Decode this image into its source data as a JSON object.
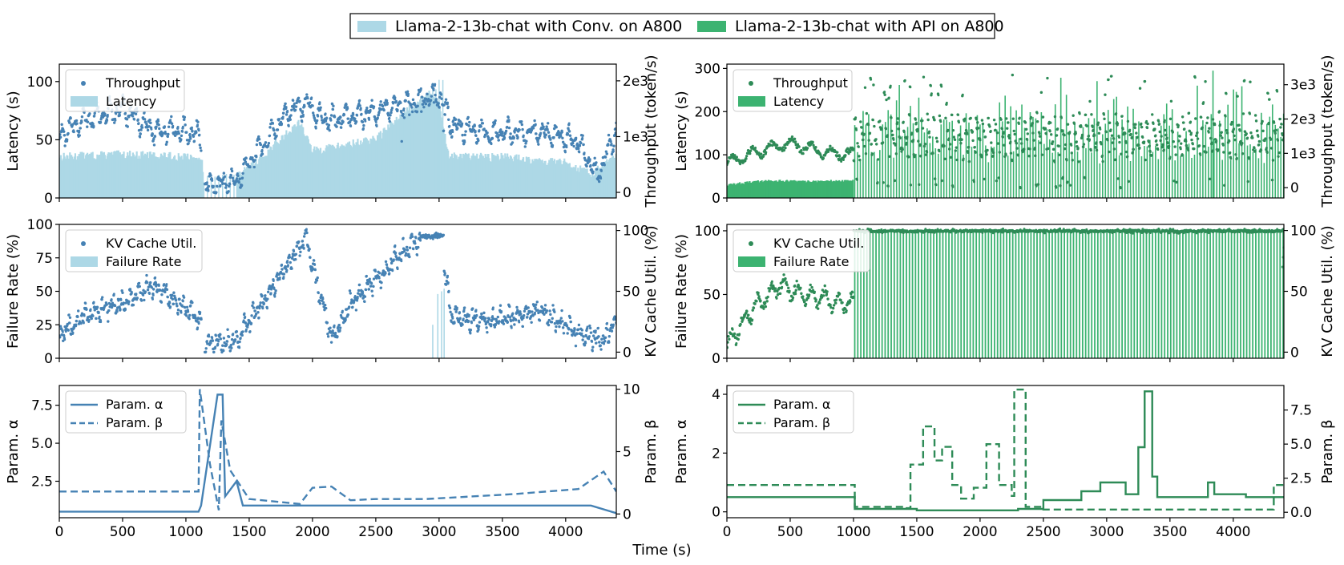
{
  "figure": {
    "legend": [
      {
        "label": "Llama-2-13b-chat with Conv. on A800",
        "color": "#add8e6"
      },
      {
        "label": "Llama-2-13b-chat with API on A800",
        "color": "#3cb371"
      }
    ],
    "xlabel": "Time (s)"
  },
  "colors": {
    "conv_dark": "#4682b4",
    "conv_light": "#add8e6",
    "api_dark": "#2e8b57",
    "api_light": "#3cb371"
  },
  "chart_data": [
    {
      "id": "conv-latency",
      "type": "bar+scatter",
      "column": "left",
      "row": 0,
      "xlim": [
        0,
        4400
      ],
      "xticks": [
        0,
        500,
        1000,
        1500,
        2000,
        2500,
        3000,
        3500,
        4000
      ],
      "left_axis": {
        "label": "Latency (s)",
        "ylim": [
          0,
          115
        ],
        "ticks": [
          0,
          50,
          100
        ],
        "tick_labels": [
          "0",
          "50",
          "100"
        ]
      },
      "right_axis": {
        "label": "Throughput (token/s)",
        "ylim": [
          -100,
          2300
        ],
        "ticks": [
          0,
          1000,
          2000
        ],
        "tick_labels": [
          "0",
          "1e3",
          "2e3"
        ]
      },
      "legend": [
        {
          "label": "Throughput",
          "kind": "dot"
        },
        {
          "label": "Latency",
          "kind": "bar"
        }
      ],
      "bars_series": {
        "name": "Latency",
        "x": [
          0,
          500,
          1000,
          1130,
          1150,
          1500,
          1900,
          2000,
          2500,
          2800,
          2950,
          3000,
          3080,
          3500,
          4000,
          4200,
          4400
        ],
        "y": [
          35,
          37,
          35,
          30,
          2,
          25,
          65,
          40,
          50,
          80,
          90,
          80,
          35,
          35,
          30,
          20,
          35
        ]
      },
      "dots_series": {
        "name": "Throughput",
        "x": [
          0,
          200,
          500,
          750,
          1000,
          1120,
          1150,
          1400,
          1800,
          1950,
          2100,
          2300,
          2600,
          2900,
          3000,
          3100,
          3400,
          3800,
          4100,
          4250,
          4400
        ],
        "y": [
          1000,
          1300,
          1500,
          1100,
          1100,
          1000,
          100,
          200,
          1450,
          1600,
          1300,
          1350,
          1500,
          1700,
          1800,
          1200,
          1050,
          1100,
          900,
          300,
          1100
        ]
      }
    },
    {
      "id": "api-latency",
      "type": "bar+scatter",
      "column": "right",
      "row": 0,
      "xlim": [
        0,
        4400
      ],
      "xticks": [
        0,
        500,
        1000,
        1500,
        2000,
        2500,
        3000,
        3500,
        4000
      ],
      "left_axis": {
        "label": "Latency (s)",
        "ylim": [
          0,
          310
        ],
        "ticks": [
          0,
          100,
          200,
          300
        ],
        "tick_labels": [
          "0",
          "100",
          "200",
          "300"
        ]
      },
      "right_axis": {
        "label": "Throughput (token/s)",
        "ylim": [
          -300,
          3600
        ],
        "ticks": [
          0,
          1000,
          2000,
          3000
        ],
        "tick_labels": [
          "0",
          "1e3",
          "2e3",
          "3e3"
        ]
      },
      "legend": [
        {
          "label": "Throughput",
          "kind": "dot"
        },
        {
          "label": "Latency",
          "kind": "bar"
        }
      ],
      "bars_series": {
        "name": "Latency",
        "x": [
          0,
          1000,
          1010,
          4400
        ],
        "y": [
          35,
          40,
          220,
          60
        ]
      },
      "dots_series": {
        "name": "Throughput",
        "x": [
          0,
          200,
          500,
          800,
          1000,
          1020,
          4400
        ],
        "y": [
          700,
          1000,
          1300,
          1000,
          1000,
          2000,
          1500
        ]
      }
    },
    {
      "id": "conv-failure",
      "type": "bar+scatter",
      "column": "left",
      "row": 1,
      "xlim": [
        0,
        4400
      ],
      "xticks": [
        0,
        500,
        1000,
        1500,
        2000,
        2500,
        3000,
        3500,
        4000
      ],
      "left_axis": {
        "label": "Failure Rate (%)",
        "ylim": [
          0,
          100
        ],
        "ticks": [
          0,
          25,
          50,
          75,
          100
        ],
        "tick_labels": [
          "0",
          "25",
          "50",
          "75",
          "100"
        ]
      },
      "right_axis": {
        "label": "KV Cache Util. (%)",
        "ylim": [
          -5,
          105
        ],
        "ticks": [
          0,
          50,
          100
        ],
        "tick_labels": [
          "0",
          "50",
          "100"
        ]
      },
      "legend": [
        {
          "label": "KV Cache Util.",
          "kind": "dot"
        },
        {
          "label": "Failure Rate",
          "kind": "bar"
        }
      ],
      "bars_series": {
        "name": "Failure Rate",
        "x": [
          2950,
          2990,
          3020,
          3040
        ],
        "y": [
          25,
          48,
          50,
          52
        ]
      },
      "dots_series": {
        "name": "KV Cache Util.",
        "x": [
          0,
          200,
          500,
          750,
          1000,
          1120,
          1150,
          1400,
          1600,
          1950,
          2000,
          2150,
          2300,
          2600,
          2800,
          3000,
          3050,
          3100,
          3400,
          3800,
          4100,
          4300,
          4400
        ],
        "y": [
          15,
          30,
          40,
          55,
          35,
          25,
          5,
          10,
          40,
          95,
          70,
          10,
          40,
          70,
          90,
          95,
          60,
          30,
          25,
          35,
          15,
          10,
          25
        ]
      }
    },
    {
      "id": "api-failure",
      "type": "bar+scatter",
      "column": "right",
      "row": 1,
      "xlim": [
        0,
        4400
      ],
      "xticks": [
        0,
        500,
        1000,
        1500,
        2000,
        2500,
        3000,
        3500,
        4000
      ],
      "left_axis": {
        "label": "Failure Rate (%)",
        "ylim": [
          0,
          105
        ],
        "ticks": [
          0,
          50,
          100
        ],
        "tick_labels": [
          "0",
          "50",
          "100"
        ]
      },
      "right_axis": {
        "label": "KV Cache Util. (%)",
        "ylim": [
          -5,
          105
        ],
        "ticks": [
          0,
          50,
          100
        ],
        "tick_labels": [
          "0",
          "50",
          "100"
        ]
      },
      "legend": [
        {
          "label": "KV Cache Util.",
          "kind": "dot"
        },
        {
          "label": "Failure Rate",
          "kind": "bar"
        }
      ],
      "bars_series": {
        "name": "Failure Rate",
        "x": [
          1010,
          4400
        ],
        "y": [
          100,
          100
        ]
      },
      "dots_series": {
        "name": "KV Cache Util.",
        "x": [
          0,
          200,
          400,
          700,
          1000,
          1020,
          4400
        ],
        "y": [
          5,
          35,
          55,
          45,
          40,
          100,
          100
        ]
      }
    },
    {
      "id": "conv-params",
      "type": "line",
      "column": "left",
      "row": 2,
      "xlim": [
        0,
        4400
      ],
      "xticks": [
        0,
        500,
        1000,
        1500,
        2000,
        2500,
        3000,
        3500,
        4000
      ],
      "xtick_labels": [
        "0",
        "500",
        "1000",
        "1500",
        "2000",
        "2500",
        "3000",
        "3500",
        "4000"
      ],
      "left_axis": {
        "label": "Param. α",
        "ylim": [
          0.1,
          8.8
        ],
        "ticks": [
          2.5,
          5.0,
          7.5
        ],
        "tick_labels": [
          "2.5",
          "5.0",
          "7.5"
        ]
      },
      "right_axis": {
        "label": "Param. β",
        "ylim": [
          -0.3,
          10.3
        ],
        "ticks": [
          0,
          5,
          10
        ],
        "tick_labels": [
          "0",
          "5",
          "10"
        ]
      },
      "legend": [
        {
          "label": "Param. α",
          "kind": "solid"
        },
        {
          "label": "Param. β",
          "kind": "dashed"
        }
      ],
      "series": [
        {
          "name": "Param. α",
          "style": "solid",
          "x": [
            0,
            1100,
            1120,
            1250,
            1290,
            1310,
            1400,
            1450,
            4200,
            4400
          ],
          "y": [
            0.5,
            0.5,
            0.9,
            8.2,
            8.2,
            1.5,
            2.5,
            0.9,
            0.9,
            0.4
          ]
        },
        {
          "name": "Param. β",
          "style": "dashed",
          "x": [
            0,
            1100,
            1110,
            1190,
            1260,
            1280,
            1350,
            1500,
            1900,
            2000,
            2150,
            2300,
            2500,
            2900,
            3600,
            4100,
            4300,
            4400
          ],
          "y": [
            1.8,
            1.8,
            10,
            4,
            0.3,
            7.5,
            3.5,
            1.2,
            0.8,
            2.1,
            2.2,
            1.1,
            1.2,
            1.2,
            1.6,
            2.0,
            3.4,
            1.8
          ]
        }
      ]
    },
    {
      "id": "api-params",
      "type": "line",
      "column": "right",
      "row": 2,
      "xlim": [
        0,
        4400
      ],
      "xticks": [
        0,
        500,
        1000,
        1500,
        2000,
        2500,
        3000,
        3500,
        4000
      ],
      "xtick_labels": [
        "0",
        "500",
        "1000",
        "1500",
        "2000",
        "2500",
        "3000",
        "3500",
        "4000"
      ],
      "left_axis": {
        "label": "Param. α",
        "ylim": [
          -0.2,
          4.3
        ],
        "ticks": [
          0,
          2,
          4
        ],
        "tick_labels": [
          "0",
          "2",
          "4"
        ]
      },
      "right_axis": {
        "label": "Param. β",
        "ylim": [
          -0.4,
          9.3
        ],
        "ticks": [
          0.0,
          2.5,
          5.0,
          7.5
        ],
        "tick_labels": [
          "0.0",
          "2.5",
          "5.0",
          "7.5"
        ]
      },
      "legend": [
        {
          "label": "Param. α",
          "kind": "solid"
        },
        {
          "label": "Param. β",
          "kind": "dashed"
        }
      ],
      "series": [
        {
          "name": "Param. α",
          "style": "solid",
          "x": [
            0,
            1000,
            1010,
            1500,
            2300,
            2500,
            2800,
            2950,
            3150,
            3250,
            3300,
            3330,
            3360,
            3400,
            3800,
            3850,
            4100,
            4400
          ],
          "y": [
            0.5,
            0.5,
            0.1,
            0.05,
            0.1,
            0.4,
            0.7,
            1.0,
            0.6,
            2.2,
            4.1,
            4.1,
            1.2,
            0.5,
            1.0,
            0.6,
            0.5,
            0.5
          ]
        },
        {
          "name": "Param. β",
          "style": "dashed",
          "x": [
            0,
            1000,
            1010,
            1400,
            1450,
            1550,
            1640,
            1700,
            1780,
            1850,
            1950,
            2050,
            2150,
            2250,
            2270,
            2330,
            2360,
            2500,
            4300,
            4320,
            4400
          ],
          "y": [
            2.0,
            2.0,
            0.4,
            0.3,
            3.5,
            6.3,
            3.8,
            4.8,
            2.0,
            1.0,
            1.8,
            5.0,
            2.0,
            1.2,
            9.0,
            9.0,
            0.4,
            0.2,
            0.2,
            2.0,
            2.0
          ]
        }
      ]
    }
  ]
}
